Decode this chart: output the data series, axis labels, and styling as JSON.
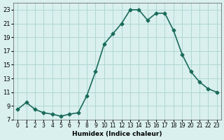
{
  "x": [
    0,
    1,
    2,
    3,
    4,
    5,
    6,
    7,
    8,
    9,
    10,
    11,
    12,
    13,
    14,
    15,
    16,
    17,
    18,
    19,
    20,
    21,
    22,
    23
  ],
  "y": [
    8.5,
    9.5,
    8.5,
    8.0,
    7.8,
    7.5,
    7.8,
    8.0,
    10.5,
    14.0,
    18.0,
    19.5,
    21.0,
    23.0,
    23.0,
    21.5,
    22.5,
    22.5,
    20.0,
    16.5,
    14.0,
    12.5,
    11.5,
    11.0
  ],
  "xlabel": "Humidex (Indice chaleur)",
  "ylim": [
    7,
    24
  ],
  "xlim": [
    -0.5,
    23.5
  ],
  "yticks": [
    7,
    9,
    11,
    13,
    15,
    17,
    19,
    21,
    23
  ],
  "xticks": [
    0,
    1,
    2,
    3,
    4,
    5,
    6,
    7,
    8,
    9,
    10,
    11,
    12,
    13,
    14,
    15,
    16,
    17,
    18,
    19,
    20,
    21,
    22,
    23
  ],
  "xtick_labels": [
    "0",
    "1",
    "2",
    "3",
    "4",
    "5",
    "6",
    "7",
    "8",
    "9",
    "10",
    "11",
    "12",
    "13",
    "14",
    "15",
    "16",
    "17",
    "18",
    "19",
    "20",
    "21",
    "22",
    "23"
  ],
  "line_color": "#1a6b5a",
  "marker_color": "#1a6b5a",
  "bg_color": "#d9f0ef",
  "grid_color": "#aed8d5"
}
